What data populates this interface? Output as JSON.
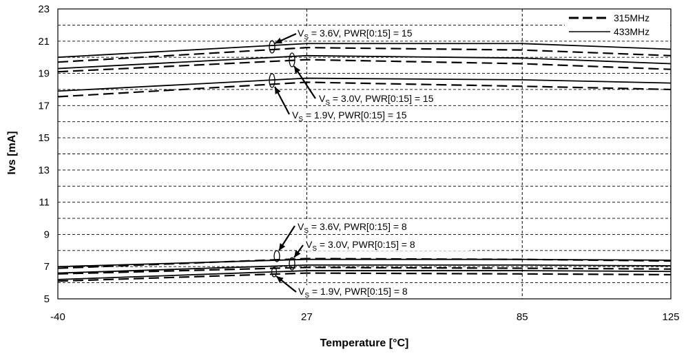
{
  "chart_data": {
    "type": "line",
    "title": "",
    "xlabel": "Temperature [°C]",
    "ylabel": "Ivs [mA]",
    "x": [
      -40,
      27,
      85,
      125
    ],
    "x_ticks": [
      "-40",
      "27",
      "85",
      "125"
    ],
    "y_ticks": [
      "5",
      "7",
      "9",
      "11",
      "13",
      "15",
      "17",
      "19",
      "21",
      "23"
    ],
    "ylim": [
      5,
      23
    ],
    "grid": "dashed horizontal every 1 mA; dashed vertical at 27 and 85",
    "legend": {
      "placement": "top-right",
      "entries": [
        {
          "label": "315MHz",
          "style": "dashed"
        },
        {
          "label": "433MHz",
          "style": "solid"
        }
      ]
    },
    "series": [
      {
        "legend": "433MHz",
        "values": [
          20.0,
          20.85,
          20.85,
          20.5
        ]
      },
      {
        "legend": "315MHz",
        "values": [
          19.7,
          20.6,
          20.45,
          20.1
        ]
      },
      {
        "legend": "433MHz",
        "values": [
          19.3,
          20.1,
          19.95,
          19.6
        ]
      },
      {
        "legend": "315MHz",
        "values": [
          19.1,
          19.85,
          19.6,
          19.25
        ]
      },
      {
        "legend": "433MHz",
        "values": [
          17.9,
          18.7,
          18.6,
          18.4
        ]
      },
      {
        "legend": "315MHz",
        "values": [
          17.55,
          18.45,
          18.2,
          18.0
        ]
      },
      {
        "legend": "315MHz",
        "values": [
          6.9,
          7.5,
          7.45,
          7.35
        ]
      },
      {
        "legend": "433MHz",
        "values": [
          7.0,
          7.45,
          7.45,
          7.4
        ]
      },
      {
        "legend": "433MHz",
        "values": [
          6.6,
          7.1,
          7.1,
          7.05
        ]
      },
      {
        "legend": "315MHz",
        "values": [
          6.55,
          6.95,
          6.9,
          6.85
        ]
      },
      {
        "legend": "433MHz",
        "values": [
          6.2,
          6.75,
          6.75,
          6.7
        ]
      },
      {
        "legend": "315MHz",
        "values": [
          6.1,
          6.6,
          6.55,
          6.5
        ]
      }
    ],
    "annotations": [
      {
        "pre": "V",
        "sub": "S",
        "post": " = 3.6V, PWR[0:15] = 15"
      },
      {
        "pre": "V",
        "sub": "S",
        "post": " = 3.0V, PWR[0:15] = 15"
      },
      {
        "pre": "V",
        "sub": "S",
        "post": " = 1.9V, PWR[0:15] = 15"
      },
      {
        "pre": "V",
        "sub": "S",
        "post": " = 3.6V, PWR[0:15] = 8"
      },
      {
        "pre": "V",
        "sub": "S",
        "post": " = 3.0V, PWR[0:15] = 8"
      },
      {
        "pre": "V",
        "sub": "S",
        "post": " = 1.9V, PWR[0:15] = 8"
      }
    ]
  }
}
